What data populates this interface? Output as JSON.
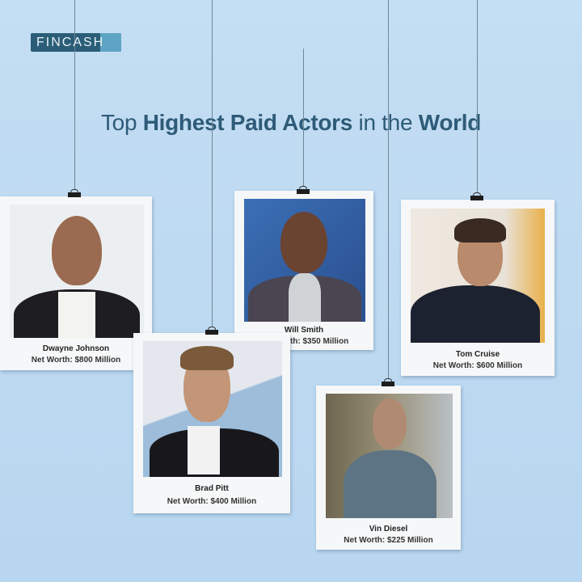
{
  "brand": {
    "logo_text": "FINCASH"
  },
  "title": {
    "part1": "Top ",
    "part2": "Highest Paid Actors",
    "part3": " in the ",
    "part4": "World"
  },
  "actors": [
    {
      "name": "Dwayne Johnson",
      "net_worth": "Net Worth: $800 Million"
    },
    {
      "name": "Will Smith",
      "net_worth": "Net Worth: $350 Million"
    },
    {
      "name": "Tom Cruise",
      "net_worth": "Net Worth: $600 Million"
    },
    {
      "name": "Brad Pitt",
      "net_worth": "Net Worth: $400 Million"
    },
    {
      "name": "Vin Diesel",
      "net_worth": "Net Worth: $225 Million"
    }
  ],
  "colors": {
    "background": "#c4def3",
    "title": "#2e5b78",
    "logo": "#2b5d77",
    "logo_accent": "#5fa4c4"
  }
}
